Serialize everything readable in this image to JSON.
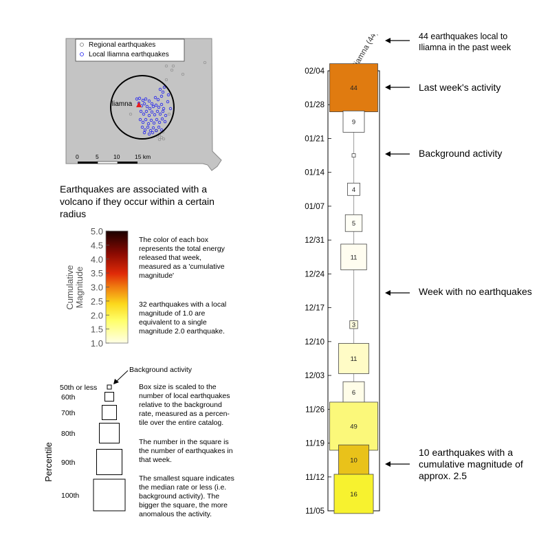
{
  "map": {
    "legend": [
      "Regional earthquakes",
      "Local Iliamna earthquakes"
    ],
    "volcano_label": "Iliamna",
    "scalebar_ticks": [
      "0",
      "5",
      "10",
      "15 km"
    ],
    "caption": "Earthquakes are associated with a volcano if they occur within a certain  radius"
  },
  "colorbar": {
    "label_line1": "Cumulative",
    "label_line2": "Magnitude",
    "ticks": [
      "5.0",
      "4.5",
      "4.0",
      "3.5",
      "3.0",
      "2.5",
      "2.0",
      "1.5",
      "1.0"
    ],
    "min": 1.0,
    "max": 5.0,
    "note1": "The color of each box represents the total energy released that week, measured as a 'cumulative magnitude'",
    "note2": "32 earthquakes with a local magnitude of 1.0 are equivalent  to a single magnitude 2.0 earthquake."
  },
  "size_legend": {
    "percentile_label": "Percentile",
    "background_label": "Background activity",
    "rows": [
      "50th or less",
      "60th",
      "70th",
      "80th",
      "90th",
      "100th"
    ],
    "note1": "Box size is scaled to the number of local earthquakes relative to the background rate, measured as a percen-tile over the entire catalog.",
    "note2": "The number in the square is the number of earthquakes in that week.",
    "note3": "The smallest square indicates the median rate or less (i.e. background activity). The bigger the square, the more anomalous the activity."
  },
  "annotations": {
    "a1": "44 earthquakes local to Iliamna in the past week",
    "a2": "Last week's activity",
    "a3": "Background activity",
    "a4": "Week with no earthquakes",
    "a5": "10 earthquakes with a cumulative magnitude of approx. 2.5"
  },
  "chart_data": {
    "type": "table",
    "column_label": "Iliamna (44)",
    "y_ticks": [
      "02/04",
      "01/28",
      "01/21",
      "01/14",
      "01/07",
      "12/31",
      "12/24",
      "12/17",
      "12/10",
      "12/03",
      "11/26",
      "11/19",
      "11/12",
      "11/05"
    ],
    "weeks": [
      {
        "week": "01/28–02/04",
        "count": 44,
        "percentile": 100,
        "color": "#e07b10"
      },
      {
        "week": "01/21–01/28",
        "count": 9,
        "percentile": 70,
        "color": "#ffffff"
      },
      {
        "week": "01/14–01/21",
        "count": null,
        "percentile": 50,
        "color": "#ffffff"
      },
      {
        "week": "01/07–01/14",
        "count": 4,
        "percentile": 60,
        "color": "#ffffff"
      },
      {
        "week": "12/31–01/07",
        "count": 5,
        "percentile": 65,
        "color": "#fffff6"
      },
      {
        "week": "12/24–12/31",
        "count": 11,
        "percentile": 75,
        "color": "#fffdf0"
      },
      {
        "week": "12/17–12/24",
        "count": 0,
        "percentile": null,
        "color": null
      },
      {
        "week": "12/10–12/17",
        "count": 3,
        "percentile": 55,
        "color": "#fffde0"
      },
      {
        "week": "12/03–12/10",
        "count": 11,
        "percentile": 80,
        "color": "#fffcc6"
      },
      {
        "week": "11/26–12/03",
        "count": 6,
        "percentile": 70,
        "color": "#fffde8"
      },
      {
        "week": "11/19–11/26",
        "count": 49,
        "percentile": 100,
        "color": "#fbf87a"
      },
      {
        "week": "11/12–11/19",
        "count": 10,
        "percentile": 80,
        "color": "#e9c21a"
      },
      {
        "week": "11/05–11/12",
        "count": 16,
        "percentile": 90,
        "color": "#f7f22f"
      }
    ]
  }
}
